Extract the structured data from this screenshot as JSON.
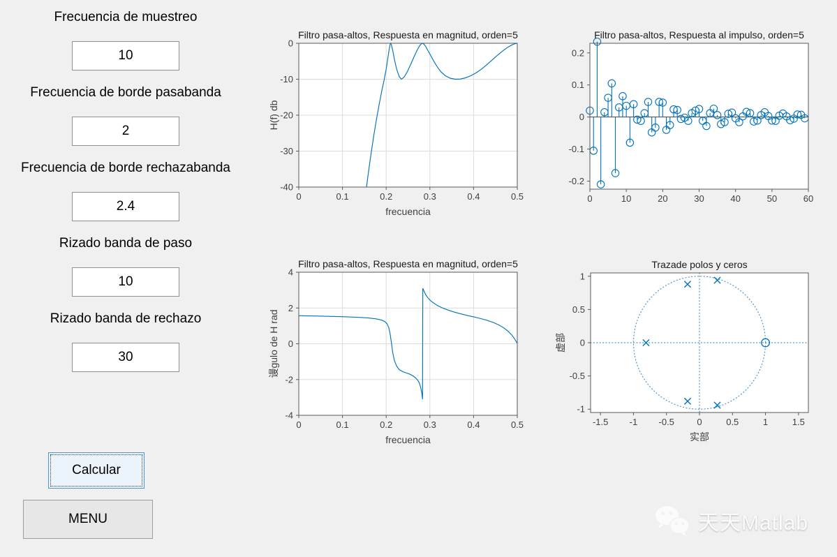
{
  "window": {
    "background": "#f0f0f0"
  },
  "panel": {
    "fields": [
      {
        "label": "Frecuencia de muestreo",
        "value": "10"
      },
      {
        "label": "Frecuencia de borde pasabanda",
        "value": "2"
      },
      {
        "label": "Frecuencia de borde rechazabanda",
        "value": "2.4"
      },
      {
        "label": "Rizado banda de paso",
        "value": "10"
      },
      {
        "label": "Rizado banda de rechazo",
        "value": "30"
      }
    ],
    "buttons": {
      "calcular": "Calcular",
      "menu": "MENU"
    }
  },
  "watermark": {
    "brand": "天天Matlab",
    "icon": "wechat-logo"
  },
  "colors": {
    "line": "#0072BD",
    "figure_bg": "#f0f0f0",
    "axes_bg": "#ffffff",
    "grid": "#dcdcdc",
    "axis_box": "#5a5a5a",
    "tick_text": "#3f3f3f",
    "title_text": "#1a1a1a",
    "dotted": "#4b94cc",
    "stem_baseline": "#3f3f3f"
  },
  "chart_data": [
    {
      "id": "magnitude-response",
      "type": "line",
      "title": "Filtro pasa-altos, Respuesta en magnitud, orden=5",
      "xlabel": "frecuencia",
      "ylabel": "H(f) db",
      "xlim": [
        0,
        0.5
      ],
      "ylim": [
        -40,
        0
      ],
      "xtick_vals": [
        0,
        0.1,
        0.2,
        0.3,
        0.4,
        0.5
      ],
      "xtick_labels": [
        "0",
        "0.1",
        "0.2",
        "0.3",
        "0.4",
        "0.5"
      ],
      "ytick_vals": [
        -40,
        -30,
        -20,
        -10,
        0
      ],
      "ytick_labels": [
        "-40",
        "-30",
        "-20",
        "-10",
        "0"
      ],
      "grid": true,
      "x": [
        0.155,
        0.158,
        0.162,
        0.167,
        0.172,
        0.178,
        0.184,
        0.19,
        0.195,
        0.2,
        0.204,
        0.207,
        0.209,
        0.2105,
        0.212,
        0.215,
        0.219,
        0.224,
        0.23,
        0.235,
        0.241,
        0.248,
        0.256,
        0.264,
        0.271,
        0.277,
        0.281,
        0.2835,
        0.286,
        0.29,
        0.295,
        0.301,
        0.308,
        0.316,
        0.325,
        0.335,
        0.346,
        0.358,
        0.37,
        0.382,
        0.394,
        0.406,
        0.418,
        0.43,
        0.442,
        0.454,
        0.466,
        0.477,
        0.487,
        0.494,
        0.5
      ],
      "y": [
        -40,
        -37.2,
        -33.6,
        -29.4,
        -25.4,
        -21,
        -17,
        -13.2,
        -10.4,
        -7.2,
        -4,
        -1.6,
        -0.3,
        0,
        -0.5,
        -2,
        -4.6,
        -7.2,
        -9.3,
        -10,
        -9.4,
        -8,
        -5.9,
        -3.7,
        -1.9,
        -0.6,
        -0.1,
        0,
        -0.2,
        -0.8,
        -1.9,
        -3.2,
        -4.8,
        -6.4,
        -7.9,
        -9,
        -9.7,
        -10,
        -9.95,
        -9.6,
        -9,
        -8.2,
        -7.2,
        -6,
        -4.7,
        -3.4,
        -2.2,
        -1.2,
        -0.5,
        -0.15,
        0
      ]
    },
    {
      "id": "impulse-response",
      "type": "stem",
      "title": "Filtro pasa-altos, Respuesta al impulso, orden=5",
      "xlabel": "",
      "ylabel": "",
      "xlim": [
        0,
        60
      ],
      "ylim": [
        -0.225,
        0.23
      ],
      "xtick_vals": [
        0,
        10,
        20,
        30,
        40,
        50,
        60
      ],
      "xtick_labels": [
        "0",
        "10",
        "20",
        "30",
        "40",
        "50",
        "60"
      ],
      "ytick_vals": [
        -0.2,
        -0.1,
        0,
        0.1,
        0.2
      ],
      "ytick_labels": [
        "-0.2",
        "-0.1",
        "0",
        "0.1",
        "0.2"
      ],
      "grid": false,
      "values": [
        0.02,
        -0.105,
        0.235,
        -0.21,
        0.015,
        0.06,
        0.105,
        -0.175,
        0.03,
        0.065,
        0.035,
        -0.08,
        0.04,
        -0.008,
        -0.012,
        0.012,
        0.047,
        -0.048,
        -0.033,
        0.047,
        0.045,
        -0.04,
        -0.025,
        0.024,
        0.022,
        -0.006,
        -0.002,
        -0.012,
        0.012,
        0.02,
        0.025,
        -0.012,
        -0.028,
        0.012,
        0.026,
        0.006,
        -0.022,
        -0.016,
        0.01,
        0.014,
        -0.004,
        -0.016,
        0.002,
        0.016,
        0.012,
        -0.014,
        -0.011,
        0.006,
        0.015,
        0.003,
        -0.011,
        -0.012,
        0.004,
        0.011,
        0.002,
        -0.01,
        -0.005,
        0.008,
        0.007,
        -0.004
      ]
    },
    {
      "id": "phase-response",
      "type": "line",
      "title": "Filtro pasa-altos, Respuesta en magnitud, orden=5",
      "xlabel": "frecuencia",
      "ylabel": "谩gulo de H rad",
      "xlim": [
        0,
        0.5
      ],
      "ylim": [
        -4,
        4
      ],
      "xtick_vals": [
        0,
        0.1,
        0.2,
        0.3,
        0.4,
        0.5
      ],
      "xtick_labels": [
        "0",
        "0.1",
        "0.2",
        "0.3",
        "0.4",
        "0.5"
      ],
      "ytick_vals": [
        -4,
        -2,
        0,
        2,
        4
      ],
      "ytick_labels": [
        "-4",
        "-2",
        "0",
        "2",
        "4"
      ],
      "grid": true,
      "x": [
        0,
        0,
        0.005,
        0.02,
        0.045,
        0.075,
        0.105,
        0.135,
        0.16,
        0.178,
        0.19,
        0.197,
        0.202,
        0.206,
        0.209,
        0.212,
        0.215,
        0.219,
        0.224,
        0.23,
        0.238,
        0.246,
        0.254,
        0.261,
        0.267,
        0.272,
        0.276,
        0.279,
        0.2815,
        0.2832,
        0.2838,
        0.287,
        0.291,
        0.296,
        0.302,
        0.309,
        0.318,
        0.329,
        0.342,
        0.356,
        0.371,
        0.386,
        0.401,
        0.416,
        0.431,
        0.445,
        0.458,
        0.469,
        0.479,
        0.487,
        0.494,
        0.5
      ],
      "y": [
        0.05,
        1.57,
        1.57,
        1.56,
        1.55,
        1.53,
        1.51,
        1.48,
        1.44,
        1.39,
        1.32,
        1.24,
        1.12,
        0.9,
        0.55,
        0.05,
        -0.5,
        -0.95,
        -1.25,
        -1.45,
        -1.56,
        -1.63,
        -1.7,
        -1.79,
        -1.9,
        -2.03,
        -2.2,
        -2.45,
        -2.75,
        -3.1,
        3.1,
        2.92,
        2.72,
        2.55,
        2.4,
        2.27,
        2.13,
        2.0,
        1.88,
        1.77,
        1.67,
        1.58,
        1.5,
        1.41,
        1.31,
        1.19,
        1.05,
        0.89,
        0.7,
        0.5,
        0.27,
        0.02
      ]
    },
    {
      "id": "pole-zero-plot",
      "type": "pole-zero",
      "title": "Trazade polos y ceros",
      "xlabel": "实部",
      "ylabel": "虚部",
      "xlim": [
        -1.65,
        1.65
      ],
      "ylim": [
        -1.05,
        1.05
      ],
      "xtick_vals": [
        -1.5,
        -1,
        -0.5,
        0,
        0.5,
        1,
        1.5
      ],
      "xtick_labels": [
        "-1.5",
        "-1",
        "-0.5",
        "0",
        "0.5",
        "1",
        "1.5"
      ],
      "ytick_vals": [
        -1,
        -0.5,
        0,
        0.5,
        1
      ],
      "ytick_labels": [
        "-1",
        "-0.5",
        "0",
        "0.5",
        "1"
      ],
      "grid": false,
      "unit_circle": true,
      "poles": [
        [
          -0.81,
          0
        ],
        [
          -0.18,
          0.88
        ],
        [
          0.27,
          0.94
        ],
        [
          -0.18,
          -0.88
        ],
        [
          0.27,
          -0.94
        ]
      ],
      "zeros": [
        [
          1,
          0
        ]
      ]
    }
  ]
}
